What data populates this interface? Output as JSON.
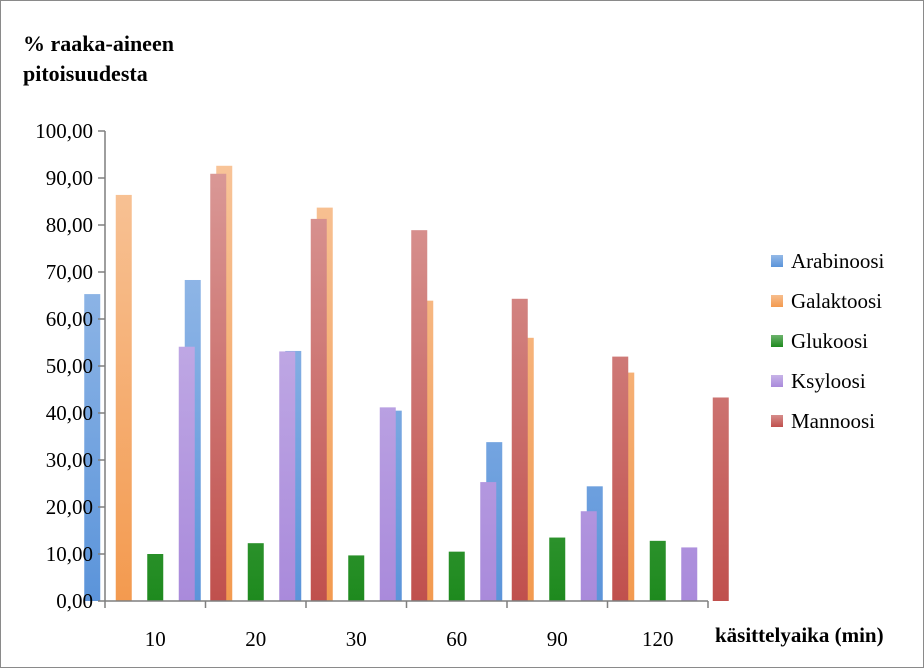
{
  "chart_data": {
    "type": "bar",
    "ylabel": "% raaka-aineen pitoisuudesta",
    "xlabel": "käsittelyaika (min)",
    "categories": [
      "10",
      "20",
      "30",
      "60",
      "90",
      "120"
    ],
    "yticks": [
      "0,00",
      "10,00",
      "20,00",
      "30,00",
      "40,00",
      "50,00",
      "60,00",
      "70,00",
      "80,00",
      "90,00",
      "100,00"
    ],
    "ylim": [
      0,
      100
    ],
    "grid": false,
    "legend_position": "right",
    "series": [
      {
        "name": "Arabinoosi",
        "color": "#5B94DA",
        "values": [
          65.3,
          68.3,
          53.2,
          40.5,
          33.8,
          24.4
        ]
      },
      {
        "name": "Galaktoosi",
        "color": "#F39A4F",
        "values": [
          86.4,
          92.6,
          83.7,
          63.9,
          56.0,
          48.6
        ]
      },
      {
        "name": "Glukoosi",
        "color": "#1E8A1E",
        "values": [
          10.0,
          12.3,
          9.7,
          10.5,
          13.5,
          12.8
        ]
      },
      {
        "name": "Ksyloosi",
        "color": "#A98ADB",
        "values": [
          54.1,
          53.1,
          41.2,
          25.3,
          19.1,
          11.4
        ]
      },
      {
        "name": "Mannoosi",
        "color": "#C0504D",
        "values": [
          90.9,
          81.3,
          78.9,
          64.3,
          52.0,
          43.3
        ]
      }
    ]
  }
}
